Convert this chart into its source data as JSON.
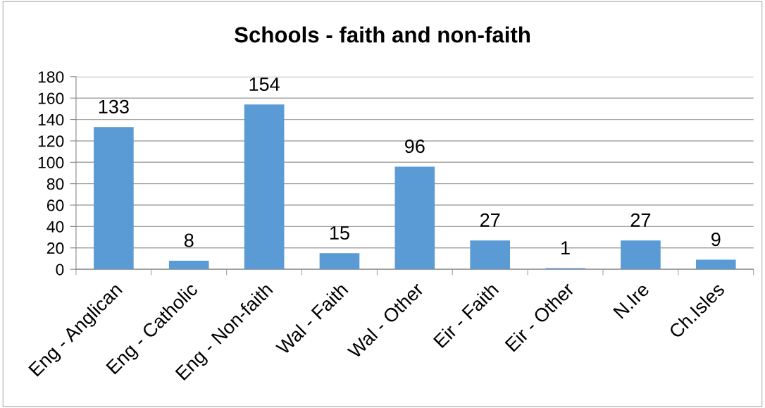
{
  "chart_data": {
    "type": "bar",
    "title": "Schools - faith and non-faith",
    "categories": [
      "Eng - Anglican",
      "Eng - Catholic",
      "Eng - Non-faith",
      "Wal - Faith",
      "Wal - Other",
      "Eir - Faith",
      "Eir - Other",
      "N.Ire",
      "Ch.Isles"
    ],
    "values": [
      133,
      8,
      154,
      15,
      96,
      27,
      1,
      27,
      9
    ],
    "color": "#5b9bd5",
    "ylim": [
      0,
      180
    ],
    "yticks": [
      0,
      20,
      40,
      60,
      80,
      100,
      120,
      140,
      160,
      180
    ],
    "grid": "y",
    "data_labels": true,
    "legend": false
  }
}
